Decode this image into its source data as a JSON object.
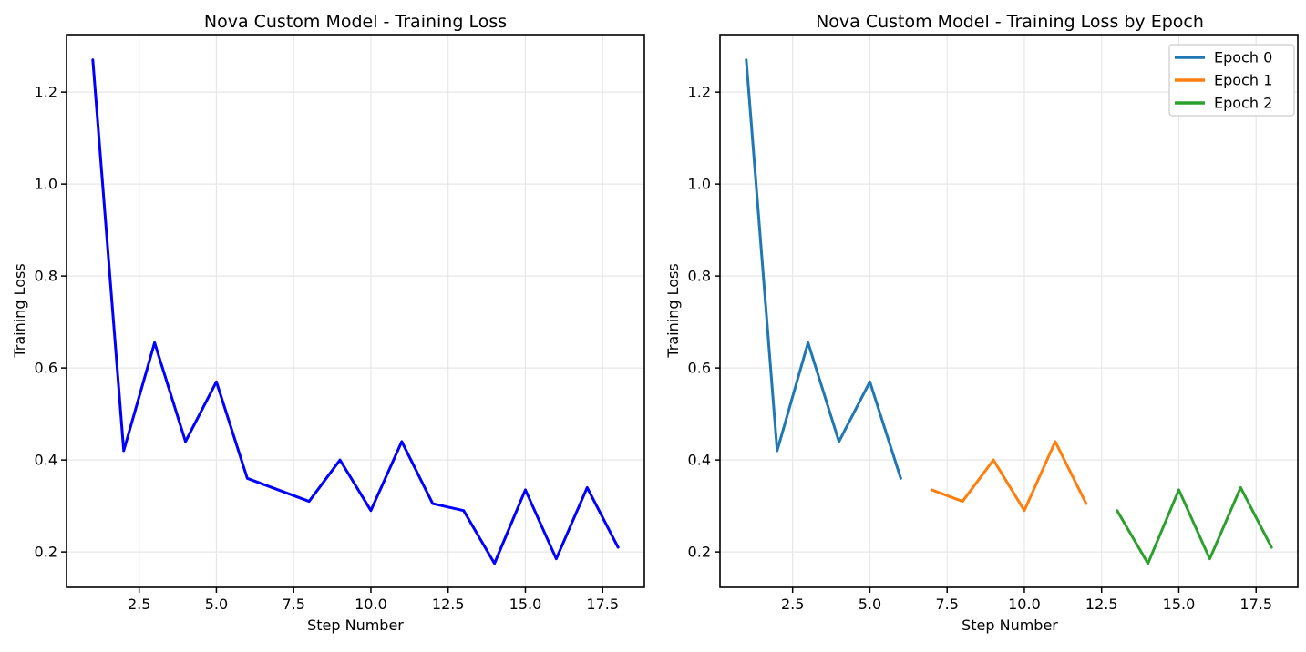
{
  "figure": {
    "background": "#ffffff",
    "text_color": "#000000",
    "grid_color": "#e7e7e7",
    "spine_color": "#000000",
    "legend_border_color": "#cccccc"
  },
  "chart_data": [
    {
      "type": "line",
      "title": "Nova Custom Model - Training Loss",
      "xlabel": "Step Number",
      "ylabel": "Training Loss",
      "xlim": [
        0.15,
        18.85
      ],
      "ylim": [
        0.123,
        1.325
      ],
      "xticks": [
        2.5,
        5.0,
        7.5,
        10.0,
        12.5,
        15.0,
        17.5
      ],
      "xtick_labels": [
        "2.5",
        "5.0",
        "7.5",
        "10.0",
        "12.5",
        "15.0",
        "17.5"
      ],
      "yticks": [
        0.2,
        0.4,
        0.6,
        0.8,
        1.0,
        1.2
      ],
      "ytick_labels": [
        "0.2",
        "0.4",
        "0.6",
        "0.8",
        "1.0",
        "1.2"
      ],
      "grid": true,
      "legend": null,
      "series": [
        {
          "name": "Training Loss",
          "color": "#0000ff",
          "x": [
            1,
            2,
            3,
            4,
            5,
            6,
            7,
            8,
            9,
            10,
            11,
            12,
            13,
            14,
            15,
            16,
            17,
            18
          ],
          "y": [
            1.27,
            0.42,
            0.655,
            0.44,
            0.57,
            0.36,
            0.335,
            0.31,
            0.4,
            0.29,
            0.44,
            0.305,
            0.29,
            0.175,
            0.335,
            0.185,
            0.34,
            0.21
          ]
        }
      ]
    },
    {
      "type": "line",
      "title": "Nova Custom Model - Training Loss by Epoch",
      "xlabel": "Step Number",
      "ylabel": "Training Loss",
      "xlim": [
        0.15,
        18.85
      ],
      "ylim": [
        0.123,
        1.325
      ],
      "xticks": [
        2.5,
        5.0,
        7.5,
        10.0,
        12.5,
        15.0,
        17.5
      ],
      "xtick_labels": [
        "2.5",
        "5.0",
        "7.5",
        "10.0",
        "12.5",
        "15.0",
        "17.5"
      ],
      "yticks": [
        0.2,
        0.4,
        0.6,
        0.8,
        1.0,
        1.2
      ],
      "ytick_labels": [
        "0.2",
        "0.4",
        "0.6",
        "0.8",
        "1.0",
        "1.2"
      ],
      "grid": true,
      "legend": {
        "position": "upper right",
        "labels": [
          "Epoch 0",
          "Epoch 1",
          "Epoch 2"
        ]
      },
      "series": [
        {
          "name": "Epoch 0",
          "color": "#1f77b4",
          "x": [
            1,
            2,
            3,
            4,
            5,
            6
          ],
          "y": [
            1.27,
            0.42,
            0.655,
            0.44,
            0.57,
            0.36
          ]
        },
        {
          "name": "Epoch 1",
          "color": "#ff7f0e",
          "x": [
            7,
            8,
            9,
            10,
            11,
            12
          ],
          "y": [
            0.335,
            0.31,
            0.4,
            0.29,
            0.44,
            0.305
          ]
        },
        {
          "name": "Epoch 2",
          "color": "#2ca02c",
          "x": [
            13,
            14,
            15,
            16,
            17,
            18
          ],
          "y": [
            0.29,
            0.175,
            0.335,
            0.185,
            0.34,
            0.21
          ]
        }
      ]
    }
  ]
}
